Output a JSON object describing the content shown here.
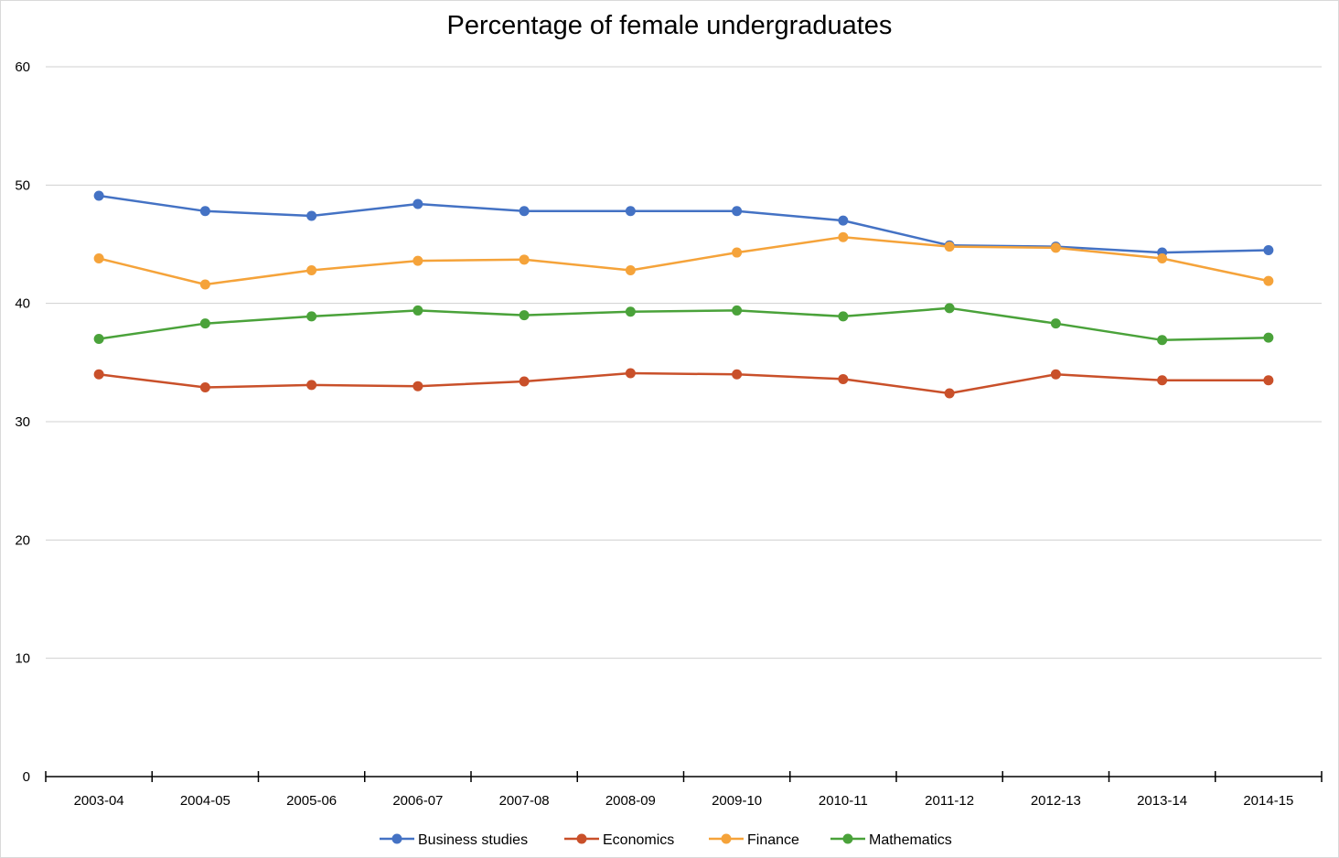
{
  "chart_data": {
    "type": "line",
    "title": "Percentage of female undergraduates",
    "xlabel": "",
    "ylabel": "",
    "ylim": [
      0,
      60
    ],
    "yticks": [
      0,
      10,
      20,
      30,
      40,
      50,
      60
    ],
    "grid": true,
    "legend_position": "bottom",
    "categories": [
      "2003-04",
      "2004-05",
      "2005-06",
      "2006-07",
      "2007-08",
      "2008-09",
      "2009-10",
      "2010-11",
      "2011-12",
      "2012-13",
      "2013-14",
      "2014-15"
    ],
    "series": [
      {
        "name": "Business studies",
        "color": "#4472c4",
        "values": [
          49.1,
          47.8,
          47.4,
          48.4,
          47.8,
          47.8,
          47.8,
          47.0,
          44.9,
          44.8,
          44.3,
          44.5
        ]
      },
      {
        "name": "Economics",
        "color": "#c9502a",
        "values": [
          34.0,
          32.9,
          33.1,
          33.0,
          33.4,
          34.1,
          34.0,
          33.6,
          32.4,
          34.0,
          33.5,
          33.5
        ]
      },
      {
        "name": "Finance",
        "color": "#f5a33a",
        "values": [
          43.8,
          41.6,
          42.8,
          43.6,
          43.7,
          42.8,
          44.3,
          45.6,
          44.8,
          44.7,
          43.8,
          41.9
        ]
      },
      {
        "name": "Mathematics",
        "color": "#4aa23a",
        "values": [
          37.0,
          38.3,
          38.9,
          39.4,
          39.0,
          39.3,
          39.4,
          38.9,
          39.6,
          38.3,
          36.9,
          37.1
        ]
      }
    ]
  }
}
